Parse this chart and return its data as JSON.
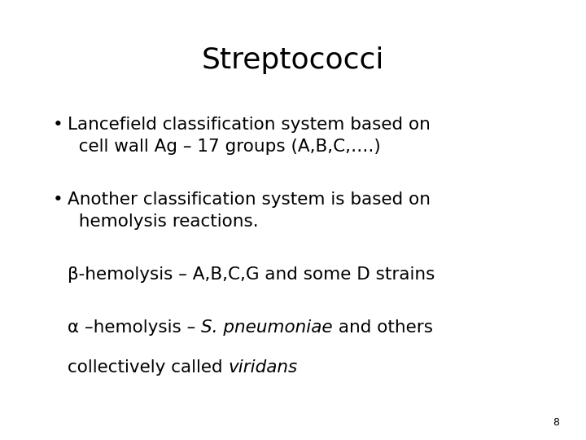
{
  "title": "Streptococci",
  "background_color": "#ffffff",
  "text_color": "#000000",
  "title_fontsize": 26,
  "body_fontsize": 15.5,
  "page_number": "8",
  "figsize": [
    7.2,
    5.4
  ],
  "dpi": 100
}
